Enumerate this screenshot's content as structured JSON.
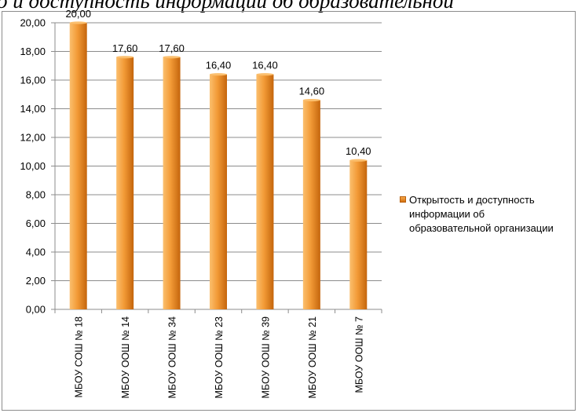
{
  "page": {
    "title_fragment": "о и доступность информации об образовательной"
  },
  "colors": {
    "bar_light": "#fbbf6e",
    "bar_mid": "#f29a36",
    "bar_dark": "#c4650c",
    "gridline": "#8c8c8c"
  },
  "chart_data": {
    "type": "bar",
    "categories": [
      "МБОУ СОШ № 18",
      "МБОУ ООШ № 14",
      "МБОУ ООШ № 34",
      "МБОУ ООШ № 23",
      "МБОУ ООШ № 39",
      "МБОУ ООШ № 21",
      "МБОУ ООШ № 7"
    ],
    "series": [
      {
        "name": "Открытость и доступность информации об образовательной организации",
        "values": [
          20.0,
          17.6,
          17.6,
          16.4,
          16.4,
          14.6,
          10.4
        ],
        "data_labels": [
          "20,00",
          "17,60",
          "17,60",
          "16,40",
          "16,40",
          "14,60",
          "10,40"
        ]
      }
    ],
    "ylim": [
      0,
      20
    ],
    "y_ticks": [
      0,
      2,
      4,
      6,
      8,
      10,
      12,
      14,
      16,
      18,
      20
    ],
    "y_tick_labels": [
      "0,00",
      "2,00",
      "4,00",
      "6,00",
      "8,00",
      "10,00",
      "12,00",
      "14,00",
      "16,00",
      "18,00",
      "20,00"
    ],
    "grid": true,
    "legend_position": "right",
    "legend_lines": [
      "Открытость и доступность",
      "информации об",
      "образовательной организации"
    ]
  }
}
